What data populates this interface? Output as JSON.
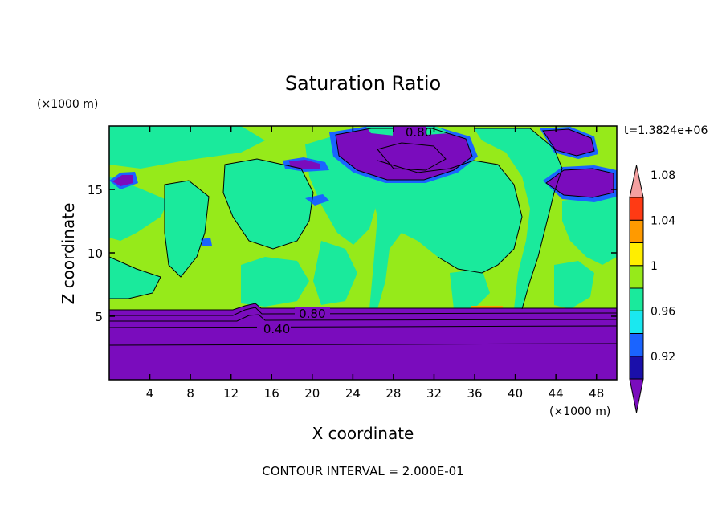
{
  "chart_data": {
    "type": "heatmap",
    "title": "Saturation Ratio",
    "xlabel": "X coordinate",
    "ylabel": "Z coordinate",
    "x_unit": "(×1000 m)",
    "y_unit": "(×1000 m)",
    "time_label": "t=1.3824e+06",
    "footer": "CONTOUR INTERVAL = 2.000E-01",
    "xlim": [
      0,
      50
    ],
    "ylim": [
      0,
      20
    ],
    "x_ticks": [
      4,
      8,
      12,
      16,
      20,
      24,
      28,
      32,
      36,
      40,
      44,
      48
    ],
    "y_ticks": [
      5,
      10,
      15
    ],
    "contour_labels": [
      {
        "text": "0.80",
        "x": 30.5,
        "y": 19.5
      },
      {
        "text": "0.80",
        "x": 20,
        "y": 5.2
      },
      {
        "text": "0.40",
        "x": 16.5,
        "y": 4.0
      }
    ],
    "colorbar": {
      "levels": [
        "0.92",
        "0.96",
        "1",
        "1.04",
        "1.08"
      ],
      "colors": [
        "#7a0cbd",
        "#1a0faa",
        "#1a64ff",
        "#1ae8f0",
        "#1aea9c",
        "#96ea1a",
        "#ffee00",
        "#ff9a00",
        "#ff3a14",
        "#f4a0a0"
      ]
    }
  }
}
